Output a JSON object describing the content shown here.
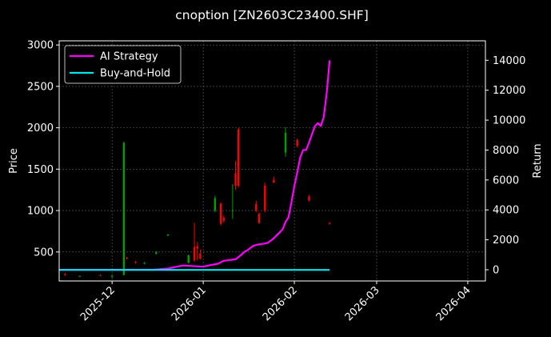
{
  "chart_data": {
    "type": "line",
    "title": "cnoption [ZN2603C23400.SHF]",
    "ylabel": "Price",
    "y2label": "Return",
    "ylim": [
      150,
      3050
    ],
    "y2lim": [
      -750,
      15300
    ],
    "xlim": [
      "2025-11-13",
      "2026-04-07"
    ],
    "y_ticks": [
      500,
      1000,
      1500,
      2000,
      2500,
      3000
    ],
    "y2_ticks": [
      0,
      2000,
      4000,
      6000,
      8000,
      10000,
      12000,
      14000
    ],
    "x_ticks": [
      "2025-12",
      "2026-01",
      "2026-02",
      "2026-03",
      "2026-04"
    ],
    "grid": true,
    "legend_position": "top-left",
    "colors": {
      "ai_strategy": "#ff00ff",
      "buy_and_hold": "#00e5ee",
      "up": "#00a000",
      "down": "#ff0000"
    },
    "series": [
      {
        "name": "AI Strategy",
        "axis": "right",
        "x": [
          "2025-11-13",
          "2025-12-01",
          "2025-12-15",
          "2025-12-20",
          "2025-12-25",
          "2025-12-28",
          "2026-01-01",
          "2026-01-03",
          "2026-01-06",
          "2026-01-08",
          "2026-01-10",
          "2026-01-12",
          "2026-01-14",
          "2026-01-15",
          "2026-01-16",
          "2026-01-18",
          "2026-01-20",
          "2026-01-22",
          "2026-01-23",
          "2026-01-25",
          "2026-01-27",
          "2026-01-28",
          "2026-01-29",
          "2026-01-30",
          "2026-01-31",
          "2026-02-01",
          "2026-02-02",
          "2026-02-03",
          "2026-02-04",
          "2026-02-05",
          "2026-02-06",
          "2026-02-08",
          "2026-02-09",
          "2026-02-10",
          "2026-02-11",
          "2026-02-12",
          "2026-02-13"
        ],
        "values": [
          0,
          0,
          0,
          80,
          280,
          250,
          200,
          300,
          400,
          600,
          650,
          700,
          1000,
          1200,
          1300,
          1600,
          1700,
          1750,
          1800,
          2100,
          2500,
          2700,
          3200,
          3500,
          4500,
          5600,
          6500,
          7500,
          8000,
          8000,
          8500,
          9600,
          9800,
          9600,
          10200,
          11800,
          14000
        ]
      },
      {
        "name": "Buy-and-Hold",
        "axis": "right",
        "x": [
          "2025-11-13",
          "2026-02-13"
        ],
        "values": [
          -10,
          -10
        ]
      }
    ],
    "candles": [
      {
        "date": "2025-11-15",
        "open": 230,
        "high": 250,
        "close": 220,
        "low": 210
      },
      {
        "date": "2025-11-20",
        "open": 205,
        "high": 215,
        "close": 210,
        "low": 200
      },
      {
        "date": "2025-11-27",
        "open": 220,
        "high": 230,
        "close": 215,
        "low": 210
      },
      {
        "date": "2025-12-01",
        "open": 200,
        "high": 230,
        "close": 210,
        "low": 190
      },
      {
        "date": "2025-12-05",
        "open": 220,
        "high": 1830,
        "close": 1820,
        "low": 220
      },
      {
        "date": "2025-12-06",
        "open": 430,
        "high": 440,
        "close": 420,
        "low": 410
      },
      {
        "date": "2025-12-09",
        "open": 380,
        "high": 390,
        "close": 370,
        "low": 360
      },
      {
        "date": "2025-12-12",
        "open": 360,
        "high": 380,
        "close": 370,
        "low": 350
      },
      {
        "date": "2025-12-16",
        "open": 480,
        "high": 510,
        "close": 500,
        "low": 470
      },
      {
        "date": "2025-12-20",
        "open": 700,
        "high": 720,
        "close": 710,
        "low": 690
      },
      {
        "date": "2025-12-27",
        "open": 370,
        "high": 470,
        "close": 460,
        "low": 360
      },
      {
        "date": "2025-12-29",
        "open": 560,
        "high": 850,
        "close": 400,
        "low": 380
      },
      {
        "date": "2025-12-30",
        "open": 570,
        "high": 620,
        "close": 540,
        "low": 400
      },
      {
        "date": "2025-12-31",
        "open": 480,
        "high": 530,
        "close": 420,
        "low": 410
      },
      {
        "date": "2026-01-05",
        "open": 1000,
        "high": 1180,
        "close": 1150,
        "low": 980
      },
      {
        "date": "2026-01-07",
        "open": 1080,
        "high": 1100,
        "close": 840,
        "low": 820
      },
      {
        "date": "2026-01-08",
        "open": 910,
        "high": 940,
        "close": 880,
        "low": 850
      },
      {
        "date": "2026-01-11",
        "open": 1000,
        "high": 1320,
        "close": 1000,
        "low": 900
      },
      {
        "date": "2026-01-12",
        "open": 1450,
        "high": 1600,
        "close": 1300,
        "low": 1250
      },
      {
        "date": "2026-01-13",
        "open": 1980,
        "high": 2000,
        "close": 1300,
        "low": 1280
      },
      {
        "date": "2026-01-19",
        "open": 1080,
        "high": 1120,
        "close": 1000,
        "low": 980
      },
      {
        "date": "2026-01-20",
        "open": 960,
        "high": 980,
        "close": 850,
        "low": 840
      },
      {
        "date": "2026-01-22",
        "open": 1300,
        "high": 1340,
        "close": 1000,
        "low": 980
      },
      {
        "date": "2026-01-25",
        "open": 1370,
        "high": 1410,
        "close": 1340,
        "low": 1330
      },
      {
        "date": "2026-01-29",
        "open": 1700,
        "high": 2010,
        "close": 1940,
        "low": 1650
      },
      {
        "date": "2026-02-02",
        "open": 1850,
        "high": 1870,
        "close": 1780,
        "low": 1760
      },
      {
        "date": "2026-02-06",
        "open": 1170,
        "high": 1190,
        "close": 1120,
        "low": 1110
      },
      {
        "date": "2026-02-13",
        "open": 850,
        "high": 860,
        "close": 840,
        "low": 830
      }
    ]
  }
}
